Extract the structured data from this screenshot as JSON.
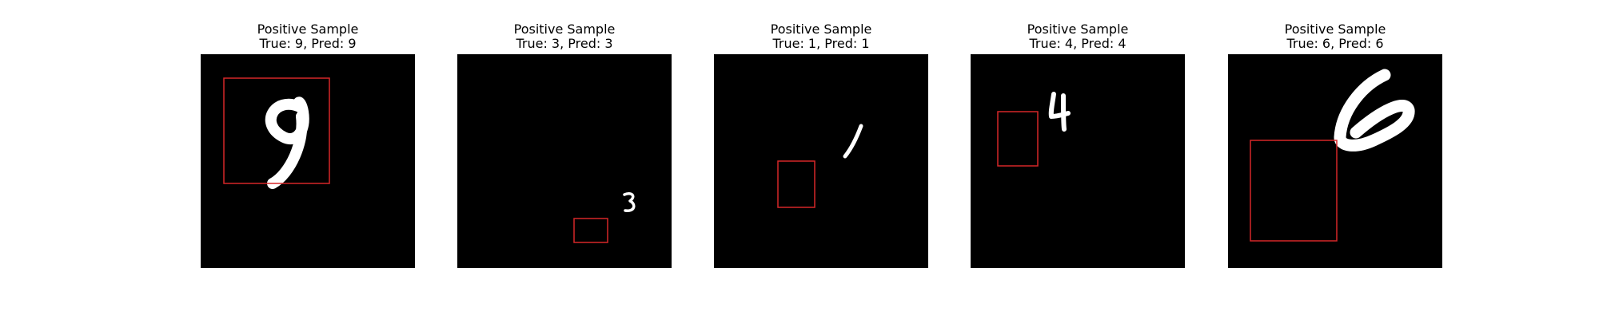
{
  "panels": [
    {
      "title": "Positive Sample",
      "subtitle": "True: 9, Pred: 9",
      "digit": "9"
    },
    {
      "title": "Positive Sample",
      "subtitle": "True: 3, Pred: 3",
      "digit": "3"
    },
    {
      "title": "Positive Sample",
      "subtitle": "True: 1, Pred: 1",
      "digit": "1"
    },
    {
      "title": "Positive Sample",
      "subtitle": "True: 4, Pred: 4",
      "digit": "4"
    },
    {
      "title": "Positive Sample",
      "subtitle": "True: 6, Pred: 6",
      "digit": "6"
    }
  ],
  "colors": {
    "background": "#ffffff",
    "image_background": "#000000",
    "digit_stroke": "#ffffff",
    "box_stroke": "#d62728"
  }
}
